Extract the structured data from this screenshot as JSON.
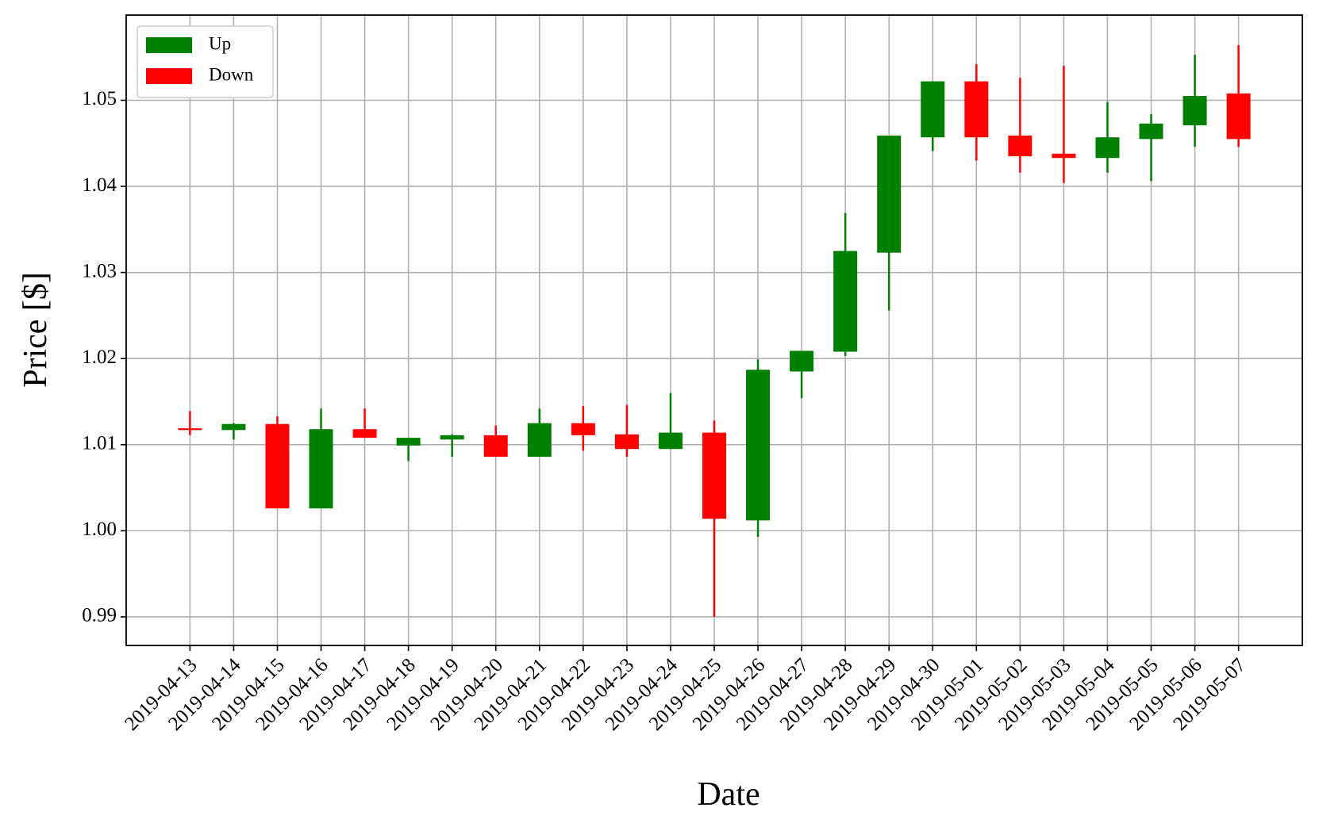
{
  "chart_data": {
    "type": "candlestick",
    "xlabel": "Date",
    "ylabel": "Price [$]",
    "categories": [
      "2019-04-13",
      "2019-04-14",
      "2019-04-15",
      "2019-04-16",
      "2019-04-17",
      "2019-04-18",
      "2019-04-19",
      "2019-04-20",
      "2019-04-21",
      "2019-04-22",
      "2019-04-23",
      "2019-04-24",
      "2019-04-25",
      "2019-04-26",
      "2019-04-27",
      "2019-04-28",
      "2019-04-29",
      "2019-04-30",
      "2019-05-01",
      "2019-05-02",
      "2019-05-03",
      "2019-05-04",
      "2019-05-05",
      "2019-05-06",
      "2019-05-07"
    ],
    "open": [
      1.0119,
      1.0117,
      1.0124,
      1.0026,
      1.0118,
      1.0099,
      1.0106,
      1.0111,
      1.0086,
      1.0125,
      1.0112,
      1.0095,
      1.0114,
      1.0012,
      1.0185,
      1.0208,
      1.0323,
      1.0457,
      1.0522,
      1.0459,
      1.0438,
      1.0433,
      1.0455,
      1.0471,
      1.0508
    ],
    "high": [
      1.0139,
      1.0125,
      1.0133,
      1.0142,
      1.0142,
      1.0108,
      1.0112,
      1.0122,
      1.0142,
      1.0145,
      1.0146,
      1.016,
      1.0128,
      1.0199,
      1.0209,
      1.0369,
      1.0459,
      1.0522,
      1.0542,
      1.0526,
      1.054,
      1.0498,
      1.0484,
      1.0553,
      1.0564
    ],
    "low": [
      1.0111,
      1.0106,
      1.0026,
      1.0026,
      1.0108,
      1.0081,
      1.0086,
      1.0086,
      1.0086,
      1.0093,
      1.0086,
      1.0095,
      0.99,
      0.9993,
      1.0154,
      1.0203,
      1.0256,
      1.0441,
      1.043,
      1.0416,
      1.0404,
      1.0416,
      1.0406,
      1.0446,
      1.0446
    ],
    "close": [
      1.0117,
      1.0124,
      1.0026,
      1.0118,
      1.0108,
      1.0108,
      1.0111,
      1.0086,
      1.0125,
      1.0111,
      1.0095,
      1.0114,
      1.0014,
      1.0187,
      1.0209,
      1.0325,
      1.0459,
      1.0522,
      1.0457,
      1.0435,
      1.0433,
      1.0457,
      1.0473,
      1.0505,
      1.0455
    ],
    "legend": {
      "position": "upper left",
      "entries": [
        {
          "name": "Up",
          "color": "#008000"
        },
        {
          "name": "Down",
          "color": "#ff0000"
        }
      ]
    },
    "ylim": [
      0.98668,
      1.0599
    ],
    "yticks": [
      0.99,
      {
        "value": 1,
        "label": "1.00"
      },
      1.01,
      1.02,
      1.03,
      1.04,
      1.05
    ],
    "grid": true
  }
}
